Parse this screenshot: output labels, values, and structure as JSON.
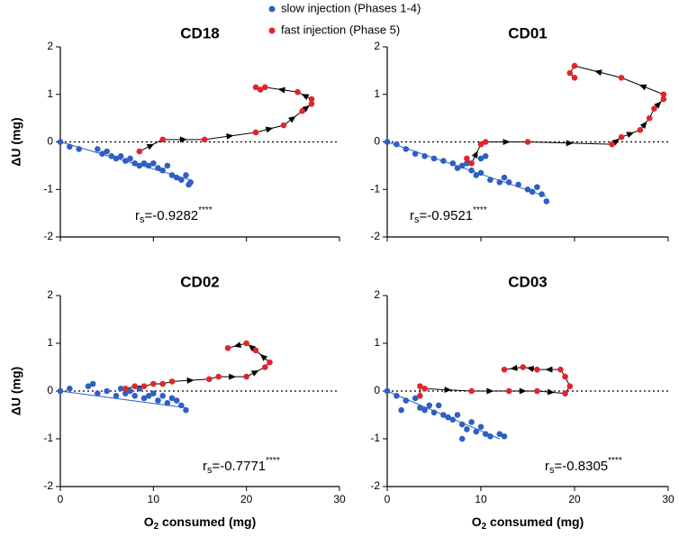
{
  "chart_data": [
    {
      "type": "scatter",
      "title": "CD18",
      "ylabel": "ΔU (mg)",
      "xlim": [
        0,
        30
      ],
      "ylim": [
        -2,
        2
      ],
      "xticks": [
        0,
        10,
        20,
        30
      ],
      "yticks": [
        -2,
        -1,
        0,
        1,
        2
      ],
      "show_xtick_labels": false,
      "annotation": {
        "prefix": "r",
        "subscript": "s",
        "text": "=-0.9282",
        "superscript": "****"
      },
      "series": [
        {
          "name": "slow injection (Phases 1-4)",
          "color": "#2f5fc4",
          "x": [
            0,
            1,
            2,
            4,
            4.5,
            5,
            5.5,
            6,
            6.5,
            7,
            7.5,
            8,
            8.5,
            9,
            9.5,
            10,
            10.5,
            11,
            11.5,
            12,
            12.5,
            13,
            13.5,
            14,
            13.8
          ],
          "y": [
            0,
            -0.1,
            -0.15,
            -0.15,
            -0.25,
            -0.2,
            -0.3,
            -0.35,
            -0.3,
            -0.4,
            -0.35,
            -0.45,
            -0.5,
            -0.45,
            -0.5,
            -0.45,
            -0.55,
            -0.6,
            -0.5,
            -0.7,
            -0.75,
            -0.8,
            -0.7,
            -0.85,
            -0.9
          ],
          "trend_x": [
            0,
            14
          ],
          "trend_y": [
            0,
            -0.8
          ]
        },
        {
          "name": "fast injection (Phase 5)",
          "color": "#e0262b",
          "connected": true,
          "x": [
            8.5,
            11,
            15.5,
            21,
            24,
            26,
            27,
            27,
            25.5,
            22,
            21.5,
            21
          ],
          "y": [
            -0.2,
            0.05,
            0.05,
            0.2,
            0.35,
            0.65,
            0.8,
            0.9,
            1.05,
            1.15,
            1.1,
            1.15
          ]
        }
      ]
    },
    {
      "type": "scatter",
      "title": "CD01",
      "xlim": [
        0,
        30
      ],
      "ylim": [
        -2,
        2
      ],
      "xticks": [
        0,
        10,
        20,
        30
      ],
      "yticks": [
        -2,
        -1,
        0,
        1,
        2
      ],
      "show_xtick_labels": false,
      "annotation": {
        "prefix": "r",
        "subscript": "s",
        "text": "=-0.9521",
        "superscript": "****"
      },
      "series": [
        {
          "color": "#2f5fc4",
          "x": [
            0,
            1,
            2,
            3,
            4,
            5,
            6,
            7,
            7.5,
            8,
            8.5,
            9,
            9.5,
            10,
            10,
            10.5,
            11,
            12,
            12.5,
            13,
            14,
            15,
            15.5,
            16,
            17,
            16.5
          ],
          "y": [
            0,
            -0.05,
            -0.15,
            -0.25,
            -0.3,
            -0.35,
            -0.4,
            -0.45,
            -0.55,
            -0.5,
            -0.45,
            -0.6,
            -0.7,
            -0.65,
            -0.35,
            -0.3,
            -0.8,
            -0.85,
            -0.75,
            -0.85,
            -0.9,
            -1.0,
            -1.05,
            -0.95,
            -1.25,
            -1.1
          ],
          "trend_x": [
            0,
            17
          ],
          "trend_y": [
            0,
            -1.15
          ]
        },
        {
          "color": "#e0262b",
          "connected": true,
          "x": [
            8.5,
            9,
            10,
            10.5,
            15,
            24,
            25,
            27,
            28,
            28.5,
            29.5,
            29.5,
            25,
            20,
            19.5,
            20
          ],
          "y": [
            -0.35,
            -0.45,
            -0.05,
            0,
            0,
            -0.05,
            0.1,
            0.25,
            0.5,
            0.7,
            0.9,
            1.0,
            1.35,
            1.6,
            1.45,
            1.35
          ]
        }
      ]
    },
    {
      "type": "scatter",
      "title": "CD02",
      "ylabel": "ΔU (mg)",
      "xlabel": {
        "prefix": "O",
        "subscript": "2",
        "text": " consumed (mg)"
      },
      "xlim": [
        0,
        30
      ],
      "ylim": [
        -2,
        2
      ],
      "xticks": [
        0,
        10,
        20,
        30
      ],
      "yticks": [
        -2,
        -1,
        0,
        1,
        2
      ],
      "show_xtick_labels": true,
      "annotation": {
        "prefix": "r",
        "subscript": "s",
        "text": "=-0.7771",
        "superscript": "****"
      },
      "series": [
        {
          "color": "#2f5fc4",
          "x": [
            0,
            1,
            3,
            3.5,
            4,
            5,
            6,
            6.5,
            7,
            7.5,
            8,
            8.5,
            9,
            9.5,
            10,
            10.5,
            11,
            11.5,
            12,
            13,
            13.5,
            12.5
          ],
          "y": [
            0,
            0.05,
            0.1,
            0.15,
            -0.05,
            0,
            -0.1,
            0.05,
            -0.05,
            0,
            -0.1,
            0.05,
            -0.15,
            -0.1,
            -0.05,
            -0.2,
            -0.1,
            -0.25,
            -0.15,
            -0.3,
            -0.4,
            -0.2
          ],
          "trend_x": [
            0,
            13.5
          ],
          "trend_y": [
            0,
            -0.35
          ]
        },
        {
          "color": "#e0262b",
          "connected": true,
          "x": [
            7,
            8,
            9,
            10,
            11,
            12,
            16,
            17,
            20,
            22,
            22.5,
            21,
            20,
            18
          ],
          "y": [
            0.05,
            0.1,
            0.1,
            0.15,
            0.15,
            0.2,
            0.25,
            0.3,
            0.3,
            0.5,
            0.6,
            0.85,
            1.0,
            0.9
          ]
        }
      ]
    },
    {
      "type": "scatter",
      "title": "CD03",
      "xlabel": {
        "prefix": "O",
        "subscript": "2",
        "text": " consumed (mg)"
      },
      "xlim": [
        0,
        30
      ],
      "ylim": [
        -2,
        2
      ],
      "xticks": [
        0,
        10,
        20,
        30
      ],
      "yticks": [
        -2,
        -1,
        0,
        1,
        2
      ],
      "show_xtick_labels": true,
      "annotation": {
        "prefix": "r",
        "subscript": "s",
        "text": "=-0.8305",
        "superscript": "****"
      },
      "series": [
        {
          "color": "#2f5fc4",
          "x": [
            0,
            1,
            1.5,
            2,
            3,
            3.5,
            4,
            4.5,
            5,
            5.5,
            6,
            6.5,
            7,
            7.5,
            8,
            8.5,
            9,
            9.5,
            10,
            10.5,
            11,
            12,
            12.5,
            8
          ],
          "y": [
            0,
            -0.1,
            -0.4,
            -0.2,
            -0.15,
            -0.35,
            -0.4,
            -0.3,
            -0.45,
            -0.3,
            -0.5,
            -0.55,
            -0.6,
            -0.5,
            -0.7,
            -0.8,
            -0.65,
            -0.85,
            -0.75,
            -0.9,
            -0.95,
            -0.9,
            -0.95,
            -1.0
          ],
          "trend_x": [
            0,
            12
          ],
          "trend_y": [
            0,
            -1.0
          ]
        },
        {
          "color": "#e0262b",
          "connected": true,
          "x": [
            3.5,
            3.5,
            4,
            9,
            13,
            16,
            19,
            19.5,
            19,
            18.5,
            16,
            14.5,
            12.5
          ],
          "y": [
            -0.1,
            0.1,
            0.05,
            0,
            0,
            0,
            -0.05,
            0.1,
            0.3,
            0.45,
            0.45,
            0.5,
            0.45
          ]
        }
      ]
    }
  ]
}
